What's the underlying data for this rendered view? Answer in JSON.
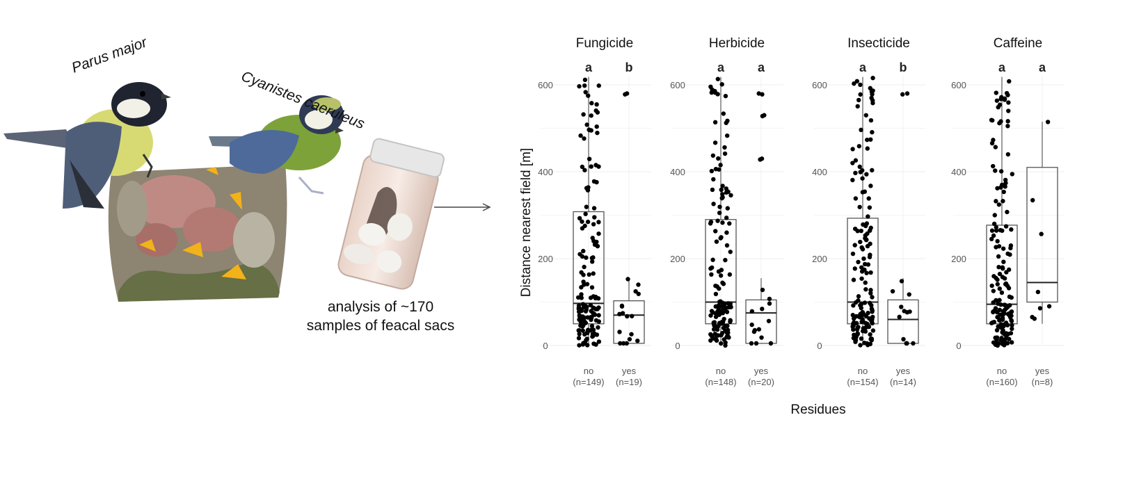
{
  "illustration": {
    "species_1": "Parus major",
    "species_2": "Cyanistes caeruleus",
    "caption_line1": "analysis of ~170",
    "caption_line2": "samples of feacal sacs",
    "colors": {
      "bird_blue": "#566b8c",
      "bird_yellow": "#d6d86a",
      "nest_bg": "#8a7f6a",
      "gape_yellow": "#f2b21a",
      "jar_lid": "#e7e7e7"
    }
  },
  "chart_data": {
    "type": "box",
    "ylabel": "Distance nearest field [m]",
    "xlabel": "Residues",
    "ylim": [
      0,
      620
    ],
    "yticks": [
      0,
      200,
      400,
      600
    ],
    "grid": true,
    "panels": [
      {
        "title": "Fungicide",
        "groups": [
          {
            "label": "no",
            "n_label": "(n=149)",
            "letter": "a",
            "box": {
              "min": 0,
              "q1": 50,
              "median": 97,
              "q3": 308,
              "max": 618
            }
          },
          {
            "label": "yes",
            "n_label": "(n=19)",
            "letter": "b",
            "box": {
              "min": 5,
              "q1": 5,
              "median": 70,
              "q3": 103,
              "max": 155
            },
            "outliers": [
              580,
              578
            ]
          }
        ]
      },
      {
        "title": "Herbicide",
        "groups": [
          {
            "label": "no",
            "n_label": "(n=148)",
            "letter": "a",
            "box": {
              "min": 0,
              "q1": 50,
              "median": 100,
              "q3": 290,
              "max": 618
            }
          },
          {
            "label": "yes",
            "n_label": "(n=20)",
            "letter": "a",
            "box": {
              "min": 5,
              "q1": 5,
              "median": 75,
              "q3": 105,
              "max": 155
            },
            "outliers": [
              580,
              578,
              530,
              528,
              430,
              428
            ]
          }
        ]
      },
      {
        "title": "Insecticide",
        "groups": [
          {
            "label": "no",
            "n_label": "(n=154)",
            "letter": "a",
            "box": {
              "min": 0,
              "q1": 50,
              "median": 100,
              "q3": 293,
              "max": 618
            }
          },
          {
            "label": "yes",
            "n_label": "(n=14)",
            "letter": "b",
            "box": {
              "min": 5,
              "q1": 5,
              "median": 60,
              "q3": 105,
              "max": 155
            },
            "outliers": [
              580,
              578
            ]
          }
        ]
      },
      {
        "title": "Caffeine",
        "groups": [
          {
            "label": "no",
            "n_label": "(n=160)",
            "letter": "a",
            "box": {
              "min": 0,
              "q1": 50,
              "median": 95,
              "q3": 277,
              "max": 618
            }
          },
          {
            "label": "yes",
            "n_label": "(n=8)",
            "letter": "a",
            "box": {
              "min": 50,
              "q1": 100,
              "median": 145,
              "q3": 410,
              "max": 515
            }
          }
        ]
      }
    ]
  }
}
